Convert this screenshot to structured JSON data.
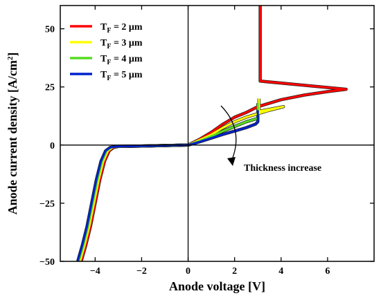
{
  "chart_data": {
    "type": "line",
    "xlabel": "Anode voltage [V]",
    "ylabel": "Anode current density [A/cm",
    "ylabel_sup": "2",
    "ylabel_close": "]",
    "xlim": [
      -5.5,
      8
    ],
    "ylim": [
      -50,
      60
    ],
    "xticks": [
      -4,
      -2,
      0,
      2,
      4,
      6
    ],
    "xtick_labels": [
      "−4",
      "−2",
      "0",
      "2",
      "4",
      "6"
    ],
    "yticks": [
      -50,
      -25,
      0,
      25,
      50
    ],
    "ytick_labels": [
      "−50",
      "−25",
      "0",
      "25",
      "50"
    ],
    "grid": false,
    "legend_position": "top-left",
    "series": [
      {
        "name_main": "T",
        "name_sub": "F",
        "name_rest": " = 2 μm",
        "color": "#ff0000",
        "points": [
          [
            -4.6,
            -50
          ],
          [
            -4.4,
            -43
          ],
          [
            -4.2,
            -35
          ],
          [
            -4.0,
            -25
          ],
          [
            -3.8,
            -15
          ],
          [
            -3.6,
            -7
          ],
          [
            -3.4,
            -2.5
          ],
          [
            -3.2,
            -1
          ],
          [
            -3.0,
            -0.6
          ],
          [
            -2.0,
            -0.4
          ],
          [
            0,
            0
          ],
          [
            0.5,
            2.5
          ],
          [
            1.0,
            5.5
          ],
          [
            1.5,
            9
          ],
          [
            2.0,
            12
          ],
          [
            2.5,
            14
          ],
          [
            3.0,
            16.5
          ],
          [
            4.0,
            19.5
          ],
          [
            5.0,
            21.5
          ],
          [
            6.0,
            23
          ],
          [
            6.8,
            24
          ],
          [
            3.1,
            27.5
          ],
          [
            3.1,
            60
          ]
        ]
      },
      {
        "name_main": "T",
        "name_sub": "F",
        "name_rest": " = 3 μm",
        "color": "#ffff00",
        "points": [
          [
            -4.65,
            -50
          ],
          [
            -4.45,
            -43
          ],
          [
            -4.25,
            -35
          ],
          [
            -4.05,
            -25
          ],
          [
            -3.85,
            -15
          ],
          [
            -3.65,
            -7
          ],
          [
            -3.45,
            -2.5
          ],
          [
            -3.25,
            -1
          ],
          [
            -3.0,
            -0.6
          ],
          [
            -2.0,
            -0.4
          ],
          [
            0,
            0
          ],
          [
            0.5,
            2.2
          ],
          [
            1.0,
            4.5
          ],
          [
            1.5,
            7.5
          ],
          [
            2.0,
            10
          ],
          [
            2.5,
            12
          ],
          [
            3.0,
            13.5
          ],
          [
            3.5,
            15
          ],
          [
            4.1,
            16.5
          ],
          [
            3.05,
            14.5
          ],
          [
            3.05,
            20
          ]
        ]
      },
      {
        "name_main": "T",
        "name_sub": "F",
        "name_rest": " = 4 μm",
        "color": "#55dd22",
        "points": [
          [
            -4.7,
            -50
          ],
          [
            -4.5,
            -43
          ],
          [
            -4.3,
            -35
          ],
          [
            -4.1,
            -25
          ],
          [
            -3.9,
            -15
          ],
          [
            -3.7,
            -7
          ],
          [
            -3.5,
            -2.5
          ],
          [
            -3.3,
            -1
          ],
          [
            -3.0,
            -0.6
          ],
          [
            -2.0,
            -0.4
          ],
          [
            0,
            0
          ],
          [
            0.5,
            1.8
          ],
          [
            1.0,
            3.8
          ],
          [
            1.5,
            6
          ],
          [
            2.0,
            8
          ],
          [
            2.5,
            10
          ],
          [
            3.0,
            11.5
          ],
          [
            3.0,
            18
          ]
        ]
      },
      {
        "name_main": "T",
        "name_sub": "F",
        "name_rest": " = 5 μm",
        "color": "#0022cc",
        "points": [
          [
            -4.75,
            -50
          ],
          [
            -4.55,
            -43
          ],
          [
            -4.35,
            -35
          ],
          [
            -4.15,
            -25
          ],
          [
            -3.95,
            -15
          ],
          [
            -3.75,
            -7
          ],
          [
            -3.55,
            -2.5
          ],
          [
            -3.35,
            -1
          ],
          [
            -3.0,
            -0.6
          ],
          [
            -2.0,
            -0.4
          ],
          [
            0,
            0
          ],
          [
            0.5,
            1.4
          ],
          [
            1.0,
            3
          ],
          [
            1.5,
            4.6
          ],
          [
            2.0,
            6
          ],
          [
            2.5,
            7.5
          ],
          [
            2.9,
            9
          ],
          [
            3.0,
            10
          ],
          [
            3.0,
            15
          ]
        ]
      }
    ],
    "annotation": "Thickness increase"
  }
}
